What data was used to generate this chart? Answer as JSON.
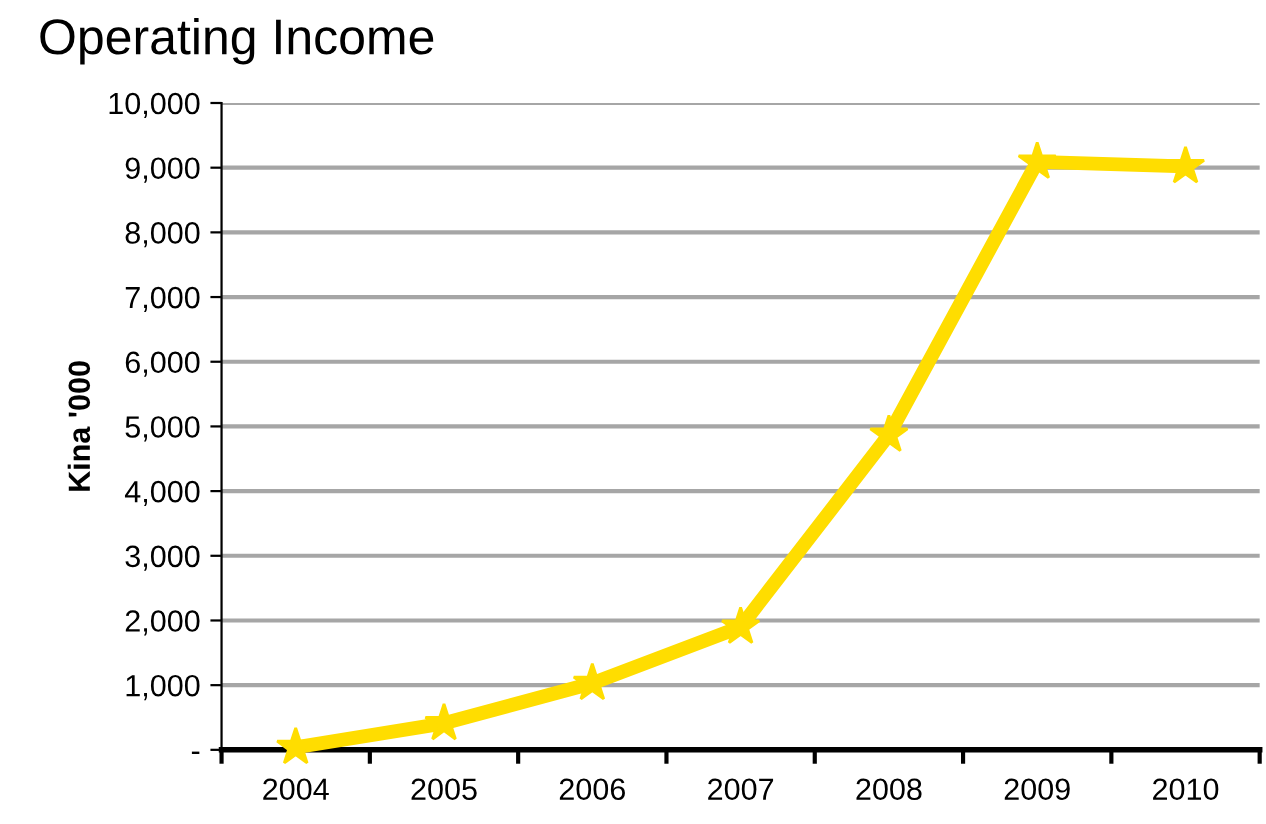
{
  "chart_data": {
    "type": "line",
    "title": "Operating Income",
    "ylabel": "Kina '000",
    "categories": [
      "2004",
      "2005",
      "2006",
      "2007",
      "2008",
      "2009",
      "2010"
    ],
    "series": [
      {
        "color": "#ffdd00",
        "values": [
          40,
          410,
          1030,
          1900,
          4870,
          9090,
          9020
        ]
      }
    ],
    "ylim": [
      0,
      10000
    ],
    "yticks": [
      {
        "value": 0,
        "label": "-"
      },
      {
        "value": 1000,
        "label": "1,000"
      },
      {
        "value": 2000,
        "label": "2,000"
      },
      {
        "value": 3000,
        "label": "3,000"
      },
      {
        "value": 4000,
        "label": "4,000"
      },
      {
        "value": 5000,
        "label": "5,000"
      },
      {
        "value": 6000,
        "label": "6,000"
      },
      {
        "value": 7000,
        "label": "7,000"
      },
      {
        "value": 8000,
        "label": "8,000"
      },
      {
        "value": 9000,
        "label": "9,000"
      },
      {
        "value": 10000,
        "label": "10,000"
      }
    ],
    "grid": "y",
    "marker": "star",
    "line_style": "solid",
    "legend": false
  }
}
